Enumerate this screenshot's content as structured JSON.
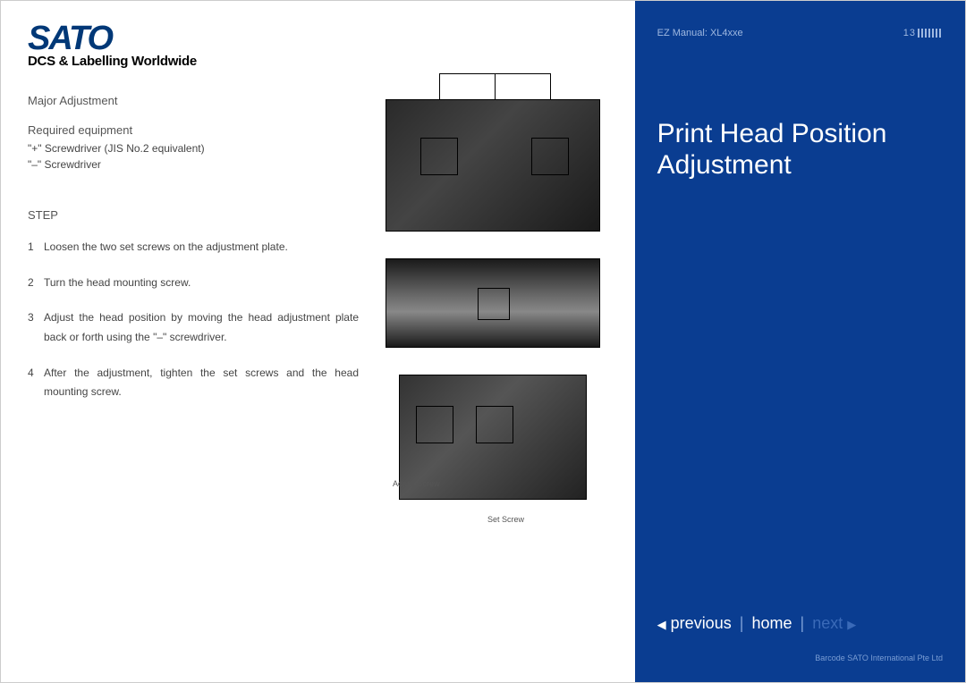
{
  "logo": {
    "brand": "SATO",
    "tagline": "DCS & Labelling Worldwide"
  },
  "leftContent": {
    "sectionTitle": "Major Adjustment",
    "equipTitle": "Required equipment",
    "equipLines": [
      "\"+\" Screwdriver (JIS No.2 equivalent)",
      "\"–\" Screwdriver"
    ],
    "stepTitle": "STEP",
    "steps": [
      "Loosen the two set screws on the adjustment plate.",
      "Turn the head mounting screw.",
      "Adjust the head position by moving the head adjustment plate back or forth using the \"–\" screwdriver.",
      "After the adjustment, tighten the set screws and the head mounting screw."
    ],
    "figLabels": {
      "adjust": "Adjust Screw",
      "set": "Set Screw"
    }
  },
  "rightPanel": {
    "headerLeft": "EZ Manual: XL4xxe",
    "pageNum": "13",
    "title1": "Print Head Position",
    "title2": "Adjustment",
    "nav": {
      "previous": "previous",
      "home": "home",
      "next": "next"
    },
    "copyright": "Barcode SATO International Pte Ltd"
  },
  "colors": {
    "rightBg": "#0a3d91",
    "rightMuted": "#9fb8e0",
    "rightDim": "#7a9dd4",
    "nextDim": "#3a6ab8",
    "logoBlue": "#003877"
  }
}
